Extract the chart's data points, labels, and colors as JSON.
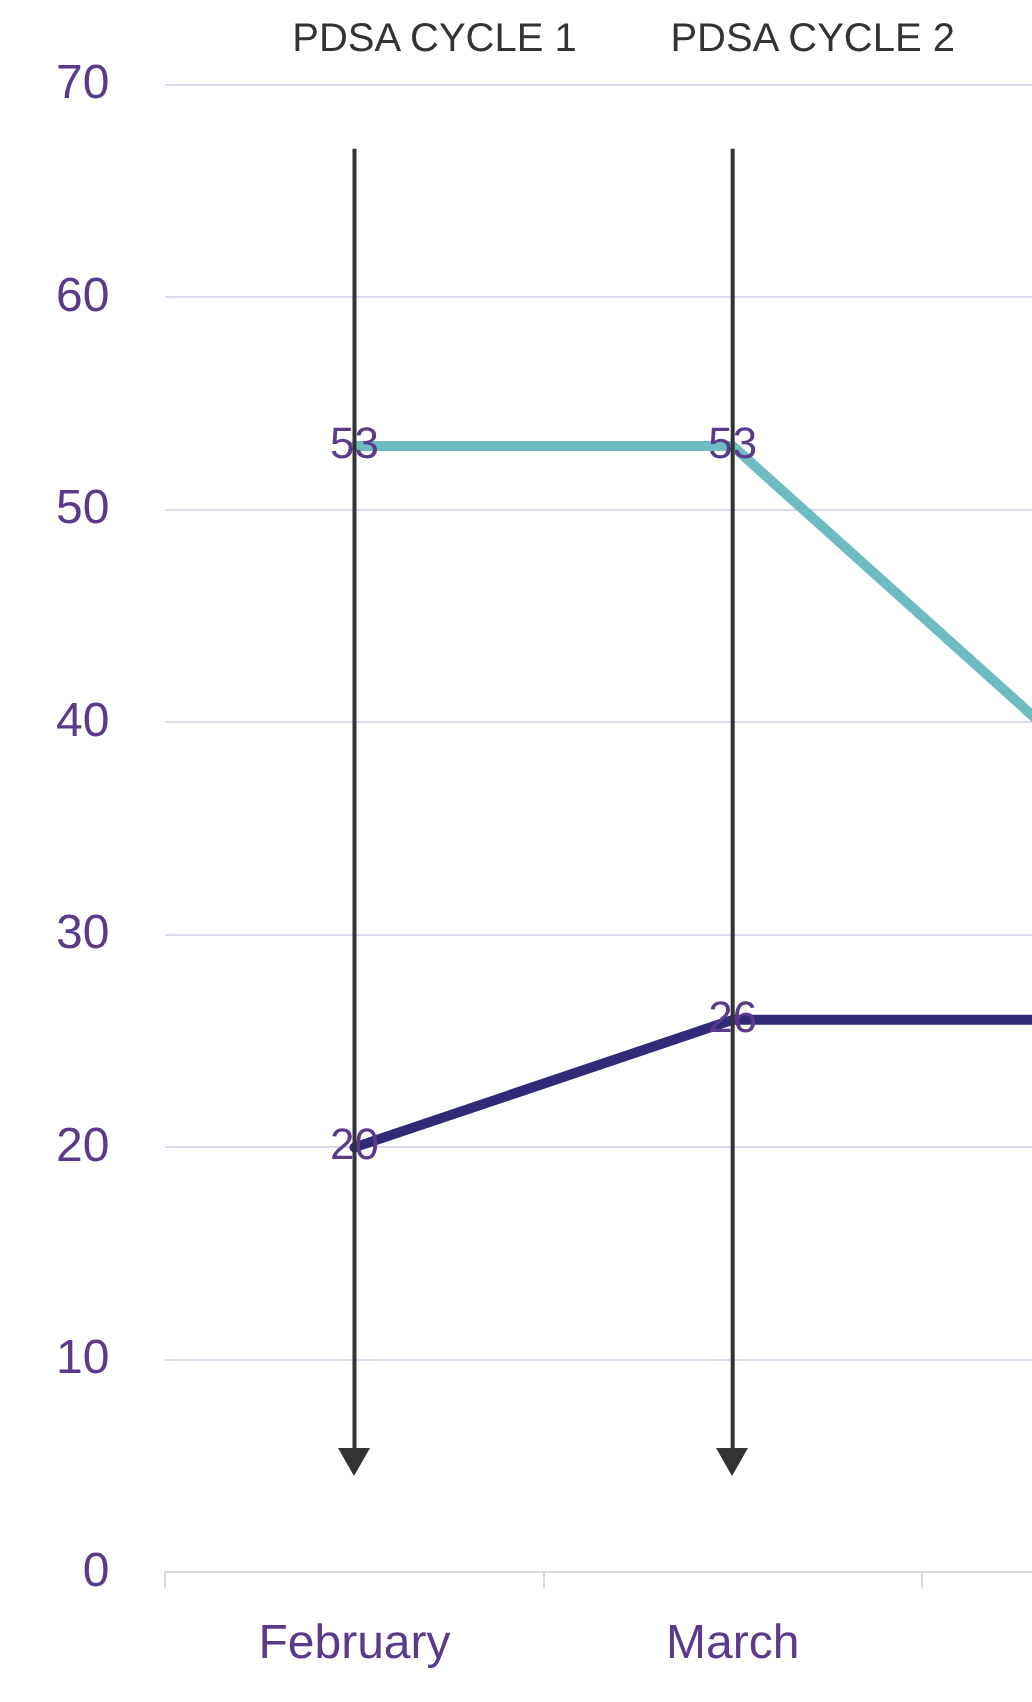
{
  "chart_data": {
    "type": "line",
    "categories": [
      "February",
      "March",
      null
    ],
    "series": [
      {
        "color": "#6dbcc2",
        "values": [
          53,
          53,
          37
        ],
        "value_labels": [
          "53",
          "53",
          null
        ]
      },
      {
        "color": "#312a78",
        "values": [
          20,
          26,
          26
        ],
        "value_labels": [
          "20",
          "26",
          null
        ]
      }
    ],
    "ylim": [
      0,
      70
    ],
    "yticks": [
      0,
      10,
      20,
      30,
      40,
      50,
      60,
      70
    ],
    "grid": "y",
    "marker": "none",
    "line_style": "solid",
    "ref_lines": [
      {
        "axis": "x",
        "value": "February",
        "label": "PDSA CYCLE 1",
        "color": "#333333"
      },
      {
        "axis": "x",
        "value": "March",
        "label": "PDSA CYCLE 2",
        "color": "#333333"
      }
    ]
  }
}
